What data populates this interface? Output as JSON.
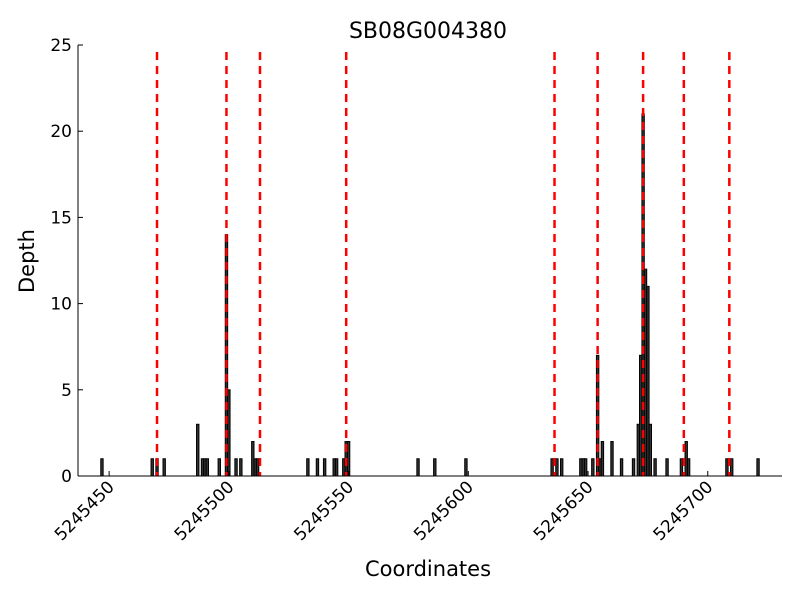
{
  "chart_data": {
    "type": "bar",
    "title": "SB08G004380",
    "xlabel": "Coordinates",
    "ylabel": "Depth",
    "xlim": [
      5245437,
      5245731
    ],
    "ylim": [
      0,
      25
    ],
    "x_ticks": [
      5245450,
      5245500,
      5245550,
      5245600,
      5245650,
      5245700
    ],
    "x_tick_labels": [
      "5245450",
      "5245500",
      "5245550",
      "5245600",
      "5245650",
      "5245700"
    ],
    "y_ticks": [
      0,
      5,
      10,
      15,
      20,
      25
    ],
    "y_tick_labels": [
      "0",
      "5",
      "10",
      "15",
      "20",
      "25"
    ],
    "grid": false,
    "bar_color": "#333333",
    "marker_color": "#ff0000",
    "bars": [
      {
        "x": 5245447,
        "y": 1
      },
      {
        "x": 5245468,
        "y": 1
      },
      {
        "x": 5245470,
        "y": 1
      },
      {
        "x": 5245473,
        "y": 1
      },
      {
        "x": 5245487,
        "y": 3
      },
      {
        "x": 5245489,
        "y": 1
      },
      {
        "x": 5245490,
        "y": 1
      },
      {
        "x": 5245491,
        "y": 1
      },
      {
        "x": 5245496,
        "y": 1
      },
      {
        "x": 5245499,
        "y": 14
      },
      {
        "x": 5245500,
        "y": 5
      },
      {
        "x": 5245503,
        "y": 1
      },
      {
        "x": 5245505,
        "y": 1
      },
      {
        "x": 5245510,
        "y": 2
      },
      {
        "x": 5245511,
        "y": 1
      },
      {
        "x": 5245512,
        "y": 1
      },
      {
        "x": 5245533,
        "y": 1
      },
      {
        "x": 5245537,
        "y": 1
      },
      {
        "x": 5245540,
        "y": 1
      },
      {
        "x": 5245544,
        "y": 1
      },
      {
        "x": 5245545,
        "y": 1
      },
      {
        "x": 5245548,
        "y": 1
      },
      {
        "x": 5245549,
        "y": 2
      },
      {
        "x": 5245550,
        "y": 2
      },
      {
        "x": 5245579,
        "y": 1
      },
      {
        "x": 5245586,
        "y": 1
      },
      {
        "x": 5245599,
        "y": 1
      },
      {
        "x": 5245635,
        "y": 1
      },
      {
        "x": 5245637,
        "y": 1
      },
      {
        "x": 5245639,
        "y": 1
      },
      {
        "x": 5245647,
        "y": 1
      },
      {
        "x": 5245648,
        "y": 1
      },
      {
        "x": 5245649,
        "y": 1
      },
      {
        "x": 5245652,
        "y": 1
      },
      {
        "x": 5245654,
        "y": 7
      },
      {
        "x": 5245655,
        "y": 1
      },
      {
        "x": 5245656,
        "y": 2
      },
      {
        "x": 5245660,
        "y": 2
      },
      {
        "x": 5245664,
        "y": 1
      },
      {
        "x": 5245669,
        "y": 1
      },
      {
        "x": 5245671,
        "y": 3
      },
      {
        "x": 5245672,
        "y": 7
      },
      {
        "x": 5245673,
        "y": 21
      },
      {
        "x": 5245674,
        "y": 12
      },
      {
        "x": 5245675,
        "y": 11
      },
      {
        "x": 5245676,
        "y": 3
      },
      {
        "x": 5245678,
        "y": 1
      },
      {
        "x": 5245683,
        "y": 1
      },
      {
        "x": 5245689,
        "y": 1
      },
      {
        "x": 5245691,
        "y": 2
      },
      {
        "x": 5245692,
        "y": 1
      },
      {
        "x": 5245708,
        "y": 1
      },
      {
        "x": 5245710,
        "y": 1
      },
      {
        "x": 5245721,
        "y": 1
      }
    ],
    "vertical_markers": [
      5245470,
      5245499,
      5245513,
      5245549,
      5245636,
      5245654,
      5245673,
      5245690,
      5245709
    ]
  }
}
